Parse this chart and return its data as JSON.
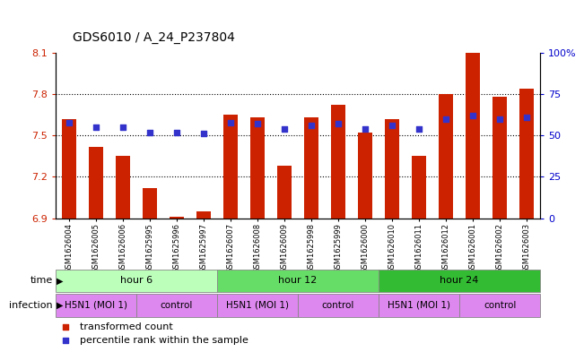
{
  "title": "GDS6010 / A_24_P237804",
  "samples": [
    "GSM1626004",
    "GSM1626005",
    "GSM1626006",
    "GSM1625995",
    "GSM1625996",
    "GSM1625997",
    "GSM1626007",
    "GSM1626008",
    "GSM1626009",
    "GSM1625998",
    "GSM1625999",
    "GSM1626000",
    "GSM1626010",
    "GSM1626011",
    "GSM1626012",
    "GSM1626001",
    "GSM1626002",
    "GSM1626003"
  ],
  "red_values": [
    7.62,
    7.42,
    7.35,
    7.12,
    6.91,
    6.95,
    7.65,
    7.63,
    7.28,
    7.63,
    7.72,
    7.52,
    7.62,
    7.35,
    7.8,
    8.1,
    7.78,
    7.84
  ],
  "blue_values": [
    58,
    55,
    55,
    52,
    52,
    51,
    58,
    57,
    54,
    56,
    57,
    54,
    56,
    54,
    60,
    62,
    60,
    61
  ],
  "ylim_left": [
    6.9,
    8.1
  ],
  "ylim_right": [
    0,
    100
  ],
  "yticks_left": [
    6.9,
    7.2,
    7.5,
    7.8,
    8.1
  ],
  "yticks_right": [
    0,
    25,
    50,
    75,
    100
  ],
  "ytick_labels_right": [
    "0",
    "25",
    "50",
    "75",
    "100%"
  ],
  "bar_color": "#cc2200",
  "blue_color": "#3333cc",
  "time_group_colors": [
    "#bbffbb",
    "#66dd66",
    "#33bb33"
  ],
  "time_groups": [
    {
      "label": "hour 6",
      "start": 0,
      "end": 6
    },
    {
      "label": "hour 12",
      "start": 6,
      "end": 12
    },
    {
      "label": "hour 24",
      "start": 12,
      "end": 18
    }
  ],
  "infection_color": "#dd88ee",
  "infection_groups": [
    {
      "label": "H5N1 (MOI 1)",
      "start": 0,
      "end": 3
    },
    {
      "label": "control",
      "start": 3,
      "end": 6
    },
    {
      "label": "H5N1 (MOI 1)",
      "start": 6,
      "end": 9
    },
    {
      "label": "control",
      "start": 9,
      "end": 12
    },
    {
      "label": "H5N1 (MOI 1)",
      "start": 12,
      "end": 15
    },
    {
      "label": "control",
      "start": 15,
      "end": 18
    }
  ],
  "time_label": "time",
  "infection_label": "infection",
  "legend_red": "transformed count",
  "legend_blue": "percentile rank within the sample",
  "bar_width": 0.55,
  "tick_label_color_left": "#cc2200",
  "tick_label_color_right": "#0000cc"
}
